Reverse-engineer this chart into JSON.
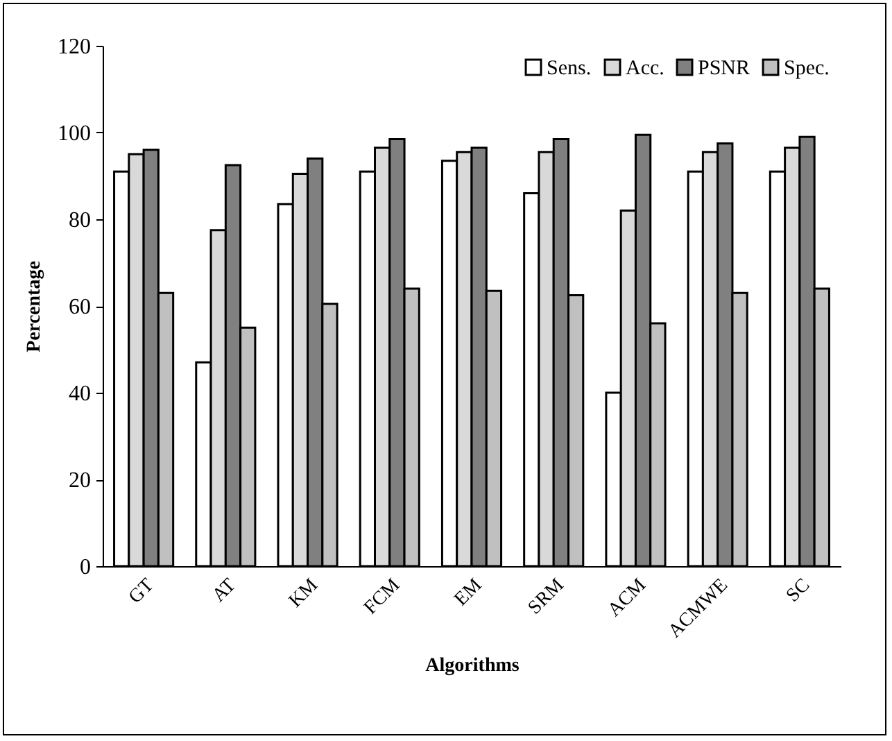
{
  "chart_data": {
    "type": "bar",
    "xlabel": "Algorithms",
    "ylabel": "Percentage",
    "categories": [
      "GT",
      "AT",
      "KM",
      "FCM",
      "EM",
      "SRM",
      "ACM",
      "ACMWE",
      "SC"
    ],
    "series": [
      {
        "name": "Sens.",
        "color": "#ffffff",
        "values": [
          91,
          47,
          83.5,
          91,
          93.5,
          86,
          40,
          91,
          91
        ]
      },
      {
        "name": "Acc.",
        "color": "#d9d9d9",
        "values": [
          95,
          77.5,
          90.5,
          96.5,
          95.5,
          95.5,
          82,
          95.5,
          96.5
        ]
      },
      {
        "name": "PSNR",
        "color": "#808080",
        "values": [
          96,
          92.5,
          94,
          98.5,
          96.5,
          98.5,
          99.5,
          97.5,
          99
        ]
      },
      {
        "name": "Spec.",
        "color": "#c0c0c0",
        "values": [
          63,
          55,
          60.5,
          64,
          63.5,
          62.5,
          56,
          63,
          64
        ]
      }
    ],
    "ylim": [
      0,
      120
    ],
    "yticks": [
      0,
      20,
      40,
      60,
      80,
      100,
      120
    ],
    "grid": false,
    "legend": "top right"
  }
}
